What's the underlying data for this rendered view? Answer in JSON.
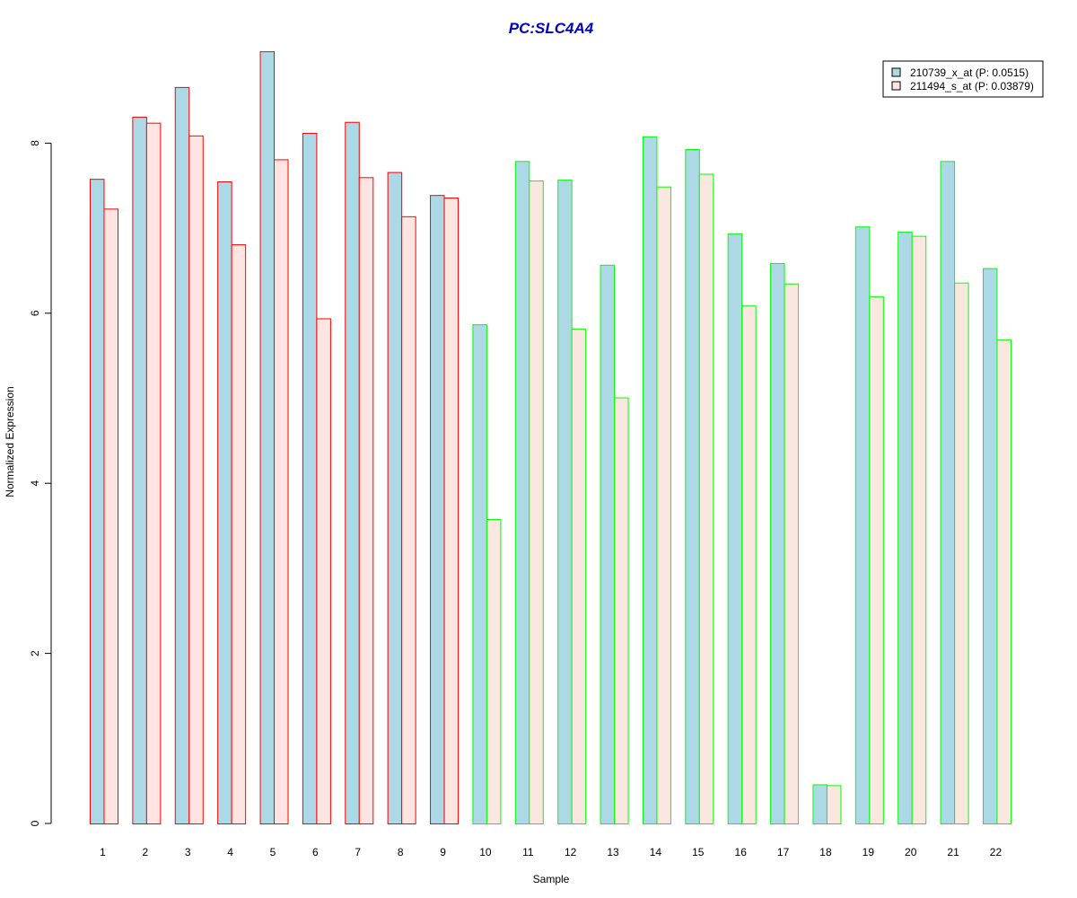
{
  "chart_data": {
    "type": "bar",
    "title": "PC:SLC4A4",
    "xlabel": "Sample",
    "ylabel": "Normalized Expression",
    "categories": [
      "1",
      "2",
      "3",
      "4",
      "5",
      "6",
      "7",
      "8",
      "9",
      "10",
      "11",
      "12",
      "13",
      "14",
      "15",
      "16",
      "17",
      "18",
      "19",
      "20",
      "21",
      "22"
    ],
    "yticks": [
      "0",
      "2",
      "4",
      "6",
      "8"
    ],
    "ylim": [
      0,
      9.1
    ],
    "legend_position": "top-right",
    "series": [
      {
        "name": "210739_x_at (P: 0.0515)",
        "fill": "#add8e6",
        "values": [
          7.58,
          8.31,
          8.66,
          7.55,
          9.08,
          8.12,
          8.25,
          7.66,
          7.39,
          5.87,
          7.79,
          7.57,
          6.57,
          8.08,
          7.93,
          6.94,
          6.59,
          0.46,
          7.02,
          6.96,
          7.79,
          6.53
        ]
      },
      {
        "name": "211494_s_at (P: 0.03879)",
        "fill": "#ffe4e1",
        "values": [
          7.23,
          8.24,
          8.09,
          6.81,
          7.81,
          5.94,
          7.6,
          7.14,
          7.36,
          3.58,
          7.56,
          5.82,
          5.01,
          7.49,
          7.64,
          6.09,
          6.35,
          0.45,
          6.2,
          6.91,
          6.36,
          5.69
        ]
      }
    ],
    "group_border_colors": [
      "#ff0000",
      "#ff0000",
      "#ff0000",
      "#ff0000",
      "#ff0000",
      "#ff0000",
      "#ff0000",
      "#ff0000",
      "#ff0000",
      "#00ff00",
      "#00ff00",
      "#00ff00",
      "#00ff00",
      "#00ff00",
      "#00ff00",
      "#00ff00",
      "#00ff00",
      "#00ff00",
      "#00ff00",
      "#00ff00",
      "#00ff00",
      "#00ff00"
    ],
    "second_series_fill_by_group": [
      "#ffe4e1",
      "#ffe4e1",
      "#ffe4e1",
      "#ffe4e1",
      "#ffe4e1",
      "#ffe4e1",
      "#ffe4e1",
      "#ffe4e1",
      "#ffe4e1",
      "#fae8e0",
      "#fae8e0",
      "#fae8e0",
      "#fae8e0",
      "#fae8e0",
      "#fae8e0",
      "#fae8e0",
      "#fae8e0",
      "#fae8e0",
      "#fae8e0",
      "#fae8e0",
      "#fae8e0",
      "#fae8e0"
    ],
    "title_color": "#0000cd"
  }
}
